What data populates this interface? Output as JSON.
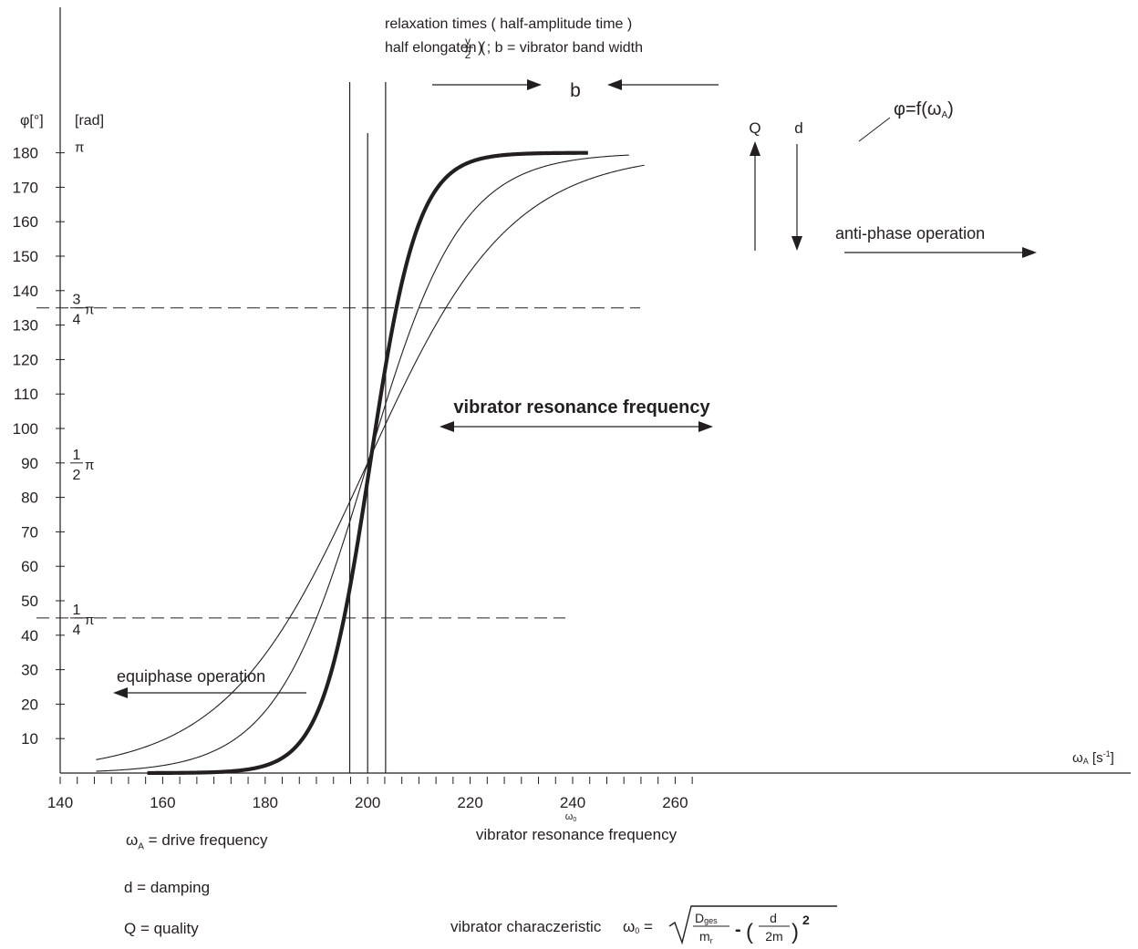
{
  "chart_data": {
    "type": "line",
    "xlabel": "ωA [s-1]",
    "xlabel_parts": {
      "symbol": "ω",
      "subscript": "A",
      "unit_open": " [s",
      "unit_sup": "-1",
      "unit_close": "]"
    },
    "ylabel": "φ[°]  [rad]",
    "ylabel_parts": {
      "deg": "φ[°]",
      "rad": "[rad]"
    },
    "xlim": [
      140,
      264
    ],
    "ylim": [
      0,
      180
    ],
    "x_ticks": [
      140,
      160,
      180,
      200,
      220,
      240,
      260
    ],
    "y_ticks": [
      10,
      20,
      30,
      40,
      50,
      60,
      70,
      80,
      90,
      100,
      110,
      120,
      130,
      140,
      150,
      160,
      170,
      180
    ],
    "rad_ticks": [
      {
        "deg": 180,
        "num": "",
        "den": "",
        "sym": "π"
      },
      {
        "deg": 135,
        "num": "3",
        "den": "4",
        "sym": "π"
      },
      {
        "deg": 90,
        "num": "1",
        "den": "2",
        "sym": "π"
      },
      {
        "deg": 45,
        "num": "1",
        "den": "4",
        "sym": "π"
      }
    ],
    "omega0_label": {
      "symbol": "ω",
      "subscript": "0"
    },
    "series": [
      {
        "style": "thick",
        "x0": 200.5,
        "k": 0.215,
        "x_range": [
          157,
          243
        ]
      },
      {
        "style": "thin",
        "x0": 200,
        "k": 0.11,
        "x_range": [
          147,
          251
        ]
      },
      {
        "style": "thin",
        "x0": 200,
        "k": 0.072,
        "x_range": [
          147,
          254
        ]
      }
    ],
    "reference_lines": {
      "horizontal_deg": [
        135,
        45
      ],
      "vertical_x": [
        196.5,
        200,
        203.5
      ]
    },
    "annotations": {
      "relaxation": "relaxation times  ( half-amplitude time )",
      "half_elongation_prefix": "half elongaton  (",
      "half_elongation_num": "y",
      "half_elongation_den": "2",
      "half_elongation_suffix": ") ;  b = vibrator band width",
      "band_label": "b",
      "phi_function": "φ=f(ω",
      "phi_function_sub": "A",
      "phi_function_close": ")",
      "quality_arrow": "Q",
      "damping_arrow": "d",
      "anti_phase": "anti-phase operation",
      "resonance": "vibrator resonance frequency",
      "equiphase": "equiphase operation",
      "below_axis": "vibrator resonance frequency"
    },
    "colors": {
      "anti_phase": "#00a14b",
      "resonance": "#00aeef",
      "equiphase": "#ed1c24",
      "ink": "#231f20"
    }
  },
  "legend": {
    "omega_a": {
      "symbol": "ω",
      "sub": "A",
      "text": " = drive frequency"
    },
    "d": "d   = damping",
    "q": "Q   = quality"
  },
  "formula": {
    "prefix": "vibrator characzeristic  ",
    "omega": "ω",
    "omega_sub": "0",
    "equals": " =",
    "numerator": "D",
    "numerator_sub": "ges",
    "denominator": "m",
    "denominator_sub": "r",
    "minus": "-",
    "inner_num": "d",
    "inner_den": "2m",
    "power": "2"
  }
}
